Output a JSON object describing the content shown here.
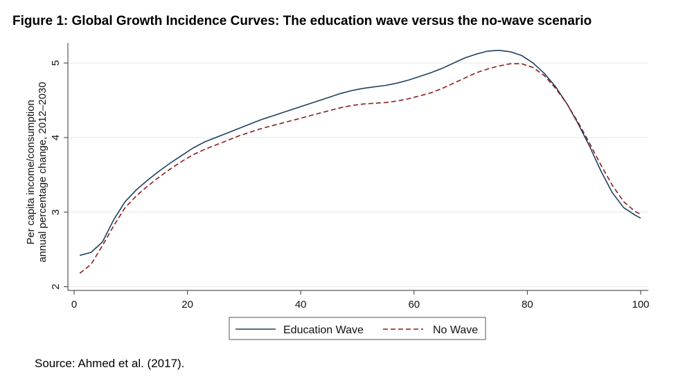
{
  "figure": {
    "title": "Figure 1: Global Growth Incidence Curves: The education wave versus the no-wave scenario",
    "source": "Source: Ahmed et al. (2017)."
  },
  "chart_data": {
    "type": "line",
    "title": "",
    "xlabel": "",
    "ylabel_lines": [
      "Per capita income/consumption",
      "annual percentage change, 2012–2030"
    ],
    "xlim": [
      0,
      100
    ],
    "ylim": [
      1.95,
      5.27
    ],
    "xticks": [
      0,
      20,
      40,
      60,
      80,
      100
    ],
    "yticks": [
      2,
      3,
      4,
      5
    ],
    "grid": "horizontal",
    "legend_position": "bottom-center",
    "colors": {
      "education_wave": "#1f3f5f",
      "no_wave": "#8b1a1a",
      "grid": "#e6e6e6"
    },
    "series": [
      {
        "name": "Education Wave",
        "style": "solid",
        "x": [
          1,
          3,
          5,
          7,
          9,
          11,
          13,
          15,
          17,
          19,
          21,
          23,
          25,
          27,
          29,
          31,
          33,
          35,
          37,
          39,
          41,
          43,
          45,
          47,
          49,
          51,
          53,
          55,
          57,
          59,
          61,
          63,
          65,
          67,
          69,
          71,
          73,
          75,
          77,
          79,
          81,
          83,
          85,
          87,
          89,
          91,
          93,
          95,
          97,
          99,
          100
        ],
        "y": [
          2.42,
          2.46,
          2.6,
          2.9,
          3.14,
          3.3,
          3.43,
          3.55,
          3.66,
          3.76,
          3.86,
          3.94,
          4.0,
          4.06,
          4.12,
          4.18,
          4.24,
          4.29,
          4.34,
          4.39,
          4.44,
          4.49,
          4.54,
          4.59,
          4.63,
          4.66,
          4.68,
          4.7,
          4.73,
          4.77,
          4.82,
          4.87,
          4.93,
          5.0,
          5.07,
          5.12,
          5.16,
          5.17,
          5.15,
          5.1,
          5.0,
          4.86,
          4.68,
          4.45,
          4.18,
          3.88,
          3.55,
          3.26,
          3.06,
          2.96,
          2.92
        ]
      },
      {
        "name": "No Wave",
        "style": "dashed",
        "x": [
          1,
          3,
          5,
          7,
          9,
          11,
          13,
          15,
          17,
          19,
          21,
          23,
          25,
          27,
          29,
          31,
          33,
          35,
          37,
          39,
          41,
          43,
          45,
          47,
          49,
          51,
          53,
          55,
          57,
          59,
          61,
          63,
          65,
          67,
          69,
          71,
          73,
          75,
          77,
          79,
          81,
          83,
          85,
          87,
          89,
          91,
          93,
          95,
          97,
          99,
          100
        ],
        "y": [
          2.18,
          2.3,
          2.55,
          2.82,
          3.06,
          3.22,
          3.35,
          3.47,
          3.58,
          3.68,
          3.77,
          3.84,
          3.9,
          3.96,
          4.02,
          4.07,
          4.12,
          4.16,
          4.2,
          4.24,
          4.28,
          4.32,
          4.36,
          4.4,
          4.43,
          4.45,
          4.46,
          4.47,
          4.49,
          4.52,
          4.56,
          4.6,
          4.66,
          4.73,
          4.8,
          4.87,
          4.92,
          4.96,
          4.99,
          4.99,
          4.94,
          4.83,
          4.66,
          4.45,
          4.2,
          3.92,
          3.63,
          3.36,
          3.14,
          3.01,
          2.97
        ]
      }
    ]
  }
}
